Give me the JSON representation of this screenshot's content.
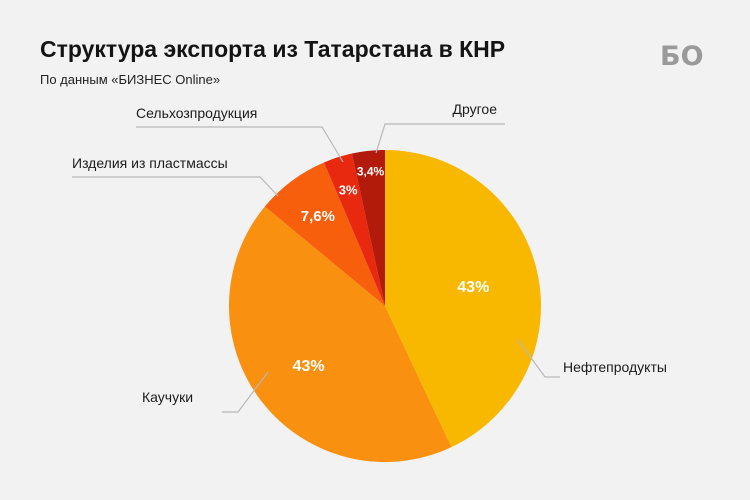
{
  "header": {
    "title": "Структура экспорта из Татарстана в КНР",
    "subtitle": "По данным «БИЗНЕС Online»"
  },
  "logo": {
    "text": "БО"
  },
  "chart_data": {
    "type": "pie",
    "start": "top",
    "direction": "clockwise",
    "slices": [
      {
        "label": "Нефтепродукты",
        "value": 43,
        "value_label": "43%",
        "color": "#F9B800"
      },
      {
        "label": "Каучуки",
        "value": 43,
        "value_label": "43%",
        "color": "#FA9010"
      },
      {
        "label": "Изделия из пластмассы",
        "value": 7.6,
        "value_label": "7,6%",
        "color": "#F85F0C"
      },
      {
        "label": "Сельхозпродукция",
        "value": 3,
        "value_label": "3%",
        "color": "#E8290F"
      },
      {
        "label": "Другое",
        "value": 3.4,
        "value_label": "3,4%",
        "color": "#B21A0B"
      }
    ]
  }
}
